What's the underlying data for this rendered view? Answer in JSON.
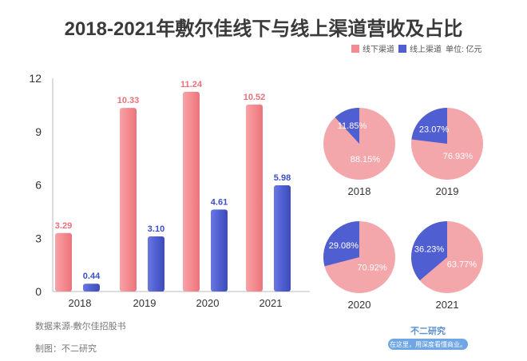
{
  "chart_data": [
    {
      "type": "bar",
      "title": "2018-2021年敷尔佳线下与线上渠道营收及占比",
      "categories": [
        "2018",
        "2019",
        "2020",
        "2021"
      ],
      "series": [
        {
          "name": "线下渠道",
          "values": [
            3.29,
            10.33,
            11.24,
            10.52
          ],
          "color": "#f48b90",
          "label_color": "#e8707a"
        },
        {
          "name": "线上渠道",
          "values": [
            0.44,
            3.1,
            4.61,
            5.98
          ],
          "color": "#4f5fd1",
          "label_color": "#3d4fc4"
        }
      ],
      "yticks": [
        0,
        3,
        6,
        9,
        12
      ],
      "ylim": [
        0,
        12
      ],
      "unit_label": "单位: 亿元",
      "legend": "top-right",
      "grid": false
    },
    {
      "type": "pie",
      "pies": [
        {
          "year": "2018",
          "slices": [
            {
              "name": "线下渠道",
              "value": 88.15,
              "label": "88.15%"
            },
            {
              "name": "线上渠道",
              "value": 11.85,
              "label": "11.85%"
            }
          ]
        },
        {
          "year": "2019",
          "slices": [
            {
              "name": "线下渠道",
              "value": 76.93,
              "label": "76.93%"
            },
            {
              "name": "线上渠道",
              "value": 23.07,
              "label": "23.07%"
            }
          ]
        },
        {
          "year": "2020",
          "slices": [
            {
              "name": "线下渠道",
              "value": 70.92,
              "label": "70.92%"
            },
            {
              "name": "线上渠道",
              "value": 29.08,
              "label": "29.08%"
            }
          ]
        },
        {
          "year": "2021",
          "slices": [
            {
              "name": "线下渠道",
              "value": 63.77,
              "label": "63.77%"
            },
            {
              "name": "线上渠道",
              "value": 36.23,
              "label": "36.23%"
            }
          ]
        }
      ],
      "colors": {
        "offline": "#f4a7ab",
        "online": "#4f5fd1"
      }
    }
  ],
  "footer": {
    "source": "数据来源-敷尔佳招股书",
    "maker": "制图：不二研究"
  },
  "brand": {
    "name": "不二研究",
    "slogan": "在这里，用深度看懂商业。"
  }
}
